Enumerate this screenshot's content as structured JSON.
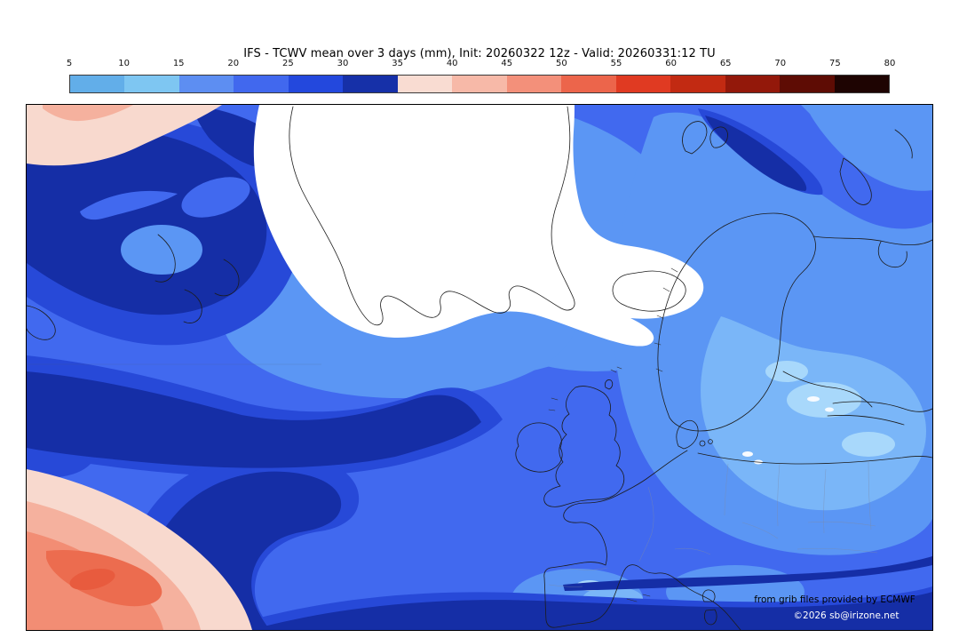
{
  "title": "IFS - TCWV mean over 3 days (mm), Init: 20260322 12z - Valid: 20260331:12 TU",
  "colorbar": {
    "ticks": [
      "5",
      "10",
      "15",
      "20",
      "25",
      "30",
      "35",
      "40",
      "45",
      "50",
      "55",
      "60",
      "65",
      "70",
      "75",
      "80"
    ],
    "segment_colors": [
      "#62aee9",
      "#7ec6f2",
      "#5d8ef2",
      "#4168ee",
      "#2348dd",
      "#1630a8",
      "#f9dcd2",
      "#f7b9a8",
      "#f3907a",
      "#ec654b",
      "#e03a22",
      "#c22a12",
      "#93180a",
      "#5e0c04",
      "#1e0402"
    ]
  },
  "map": {
    "credit1": "from grib files provided by ECMWF",
    "credit2": "©2026 sb@irizone.net",
    "palette": {
      "sea_mid": "#4169ef",
      "sea_light": "#5b96f4",
      "sea_lighter": "#7ab6f8",
      "sea_lightest": "#a8d8fb",
      "deep": "#2749d8",
      "navy": "#152ea6",
      "dry_white": "#ffffff",
      "pink_light": "#f8d9ce",
      "pink_mid": "#f5b19e",
      "salmon": "#f28d74",
      "coral": "#ec6c4f",
      "coral_deep": "#e85b3e"
    }
  }
}
